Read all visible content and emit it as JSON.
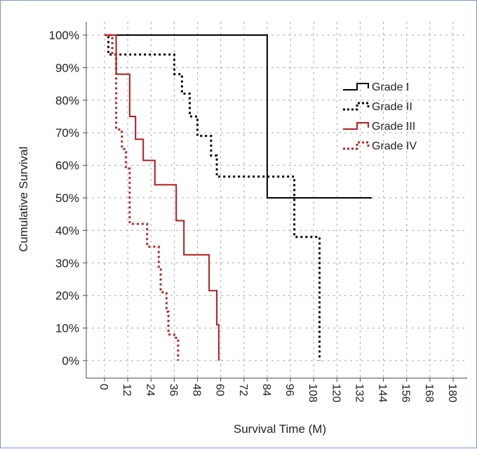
{
  "chart_data": {
    "type": "line",
    "step": true,
    "xlabel": "Survival Time (M)",
    "ylabel": "Cumulative Survival",
    "x_ticks": [
      0,
      12,
      24,
      36,
      48,
      60,
      72,
      84,
      96,
      108,
      120,
      132,
      144,
      156,
      168,
      180
    ],
    "y_ticks": [
      "0%",
      "10%",
      "20%",
      "30%",
      "40%",
      "50%",
      "60%",
      "70%",
      "80%",
      "90%",
      "100%"
    ],
    "xlim": [
      0,
      180
    ],
    "ylim": [
      0,
      100
    ],
    "grid": true,
    "legend_position": "right",
    "series": [
      {
        "name": "Grade I",
        "color": "#000000",
        "dash": "solid",
        "points": [
          [
            0,
            100
          ],
          [
            84,
            100
          ],
          [
            84,
            50
          ],
          [
            138,
            50
          ]
        ]
      },
      {
        "name": "Grade II",
        "color": "#000000",
        "dash": "dotted",
        "points": [
          [
            0,
            100
          ],
          [
            2,
            100
          ],
          [
            2,
            94
          ],
          [
            12,
            94
          ],
          [
            12,
            94
          ],
          [
            36,
            94
          ],
          [
            36,
            88
          ],
          [
            40,
            88
          ],
          [
            40,
            82
          ],
          [
            44,
            82
          ],
          [
            44,
            75
          ],
          [
            48,
            75
          ],
          [
            48,
            69
          ],
          [
            55,
            69
          ],
          [
            55,
            63
          ],
          [
            58,
            63
          ],
          [
            58,
            56.5
          ],
          [
            98,
            56.5
          ],
          [
            98,
            38
          ],
          [
            103,
            38
          ],
          [
            103,
            38
          ],
          [
            111,
            38
          ],
          [
            111,
            0
          ]
        ]
      },
      {
        "name": "Grade III",
        "color": "#b31c1c",
        "dash": "solid",
        "points": [
          [
            0,
            100
          ],
          [
            6,
            100
          ],
          [
            6,
            88
          ],
          [
            13,
            88
          ],
          [
            13,
            75
          ],
          [
            16,
            75
          ],
          [
            16,
            68
          ],
          [
            20,
            68
          ],
          [
            20,
            61.5
          ],
          [
            26,
            61.5
          ],
          [
            26,
            54
          ],
          [
            37,
            54
          ],
          [
            37,
            43
          ],
          [
            41,
            43
          ],
          [
            41,
            32.5
          ],
          [
            54,
            32.5
          ],
          [
            54,
            21.5
          ],
          [
            58,
            21.5
          ],
          [
            58,
            11
          ],
          [
            59,
            11
          ],
          [
            59,
            0
          ]
        ]
      },
      {
        "name": "Grade IV",
        "color": "#c42020",
        "dash": "dotted",
        "points": [
          [
            0,
            100
          ],
          [
            4,
            100
          ],
          [
            4,
            94
          ],
          [
            6,
            94
          ],
          [
            6,
            71
          ],
          [
            9,
            71
          ],
          [
            9,
            65
          ],
          [
            11,
            65
          ],
          [
            11,
            59
          ],
          [
            13,
            59
          ],
          [
            13,
            42
          ],
          [
            22,
            42
          ],
          [
            22,
            35
          ],
          [
            28,
            35
          ],
          [
            28,
            28
          ],
          [
            29,
            28
          ],
          [
            29,
            21
          ],
          [
            32,
            21
          ],
          [
            32,
            15
          ],
          [
            33,
            15
          ],
          [
            33,
            8
          ],
          [
            36,
            8
          ],
          [
            36,
            7
          ],
          [
            38,
            7
          ],
          [
            38,
            0
          ]
        ]
      }
    ]
  }
}
